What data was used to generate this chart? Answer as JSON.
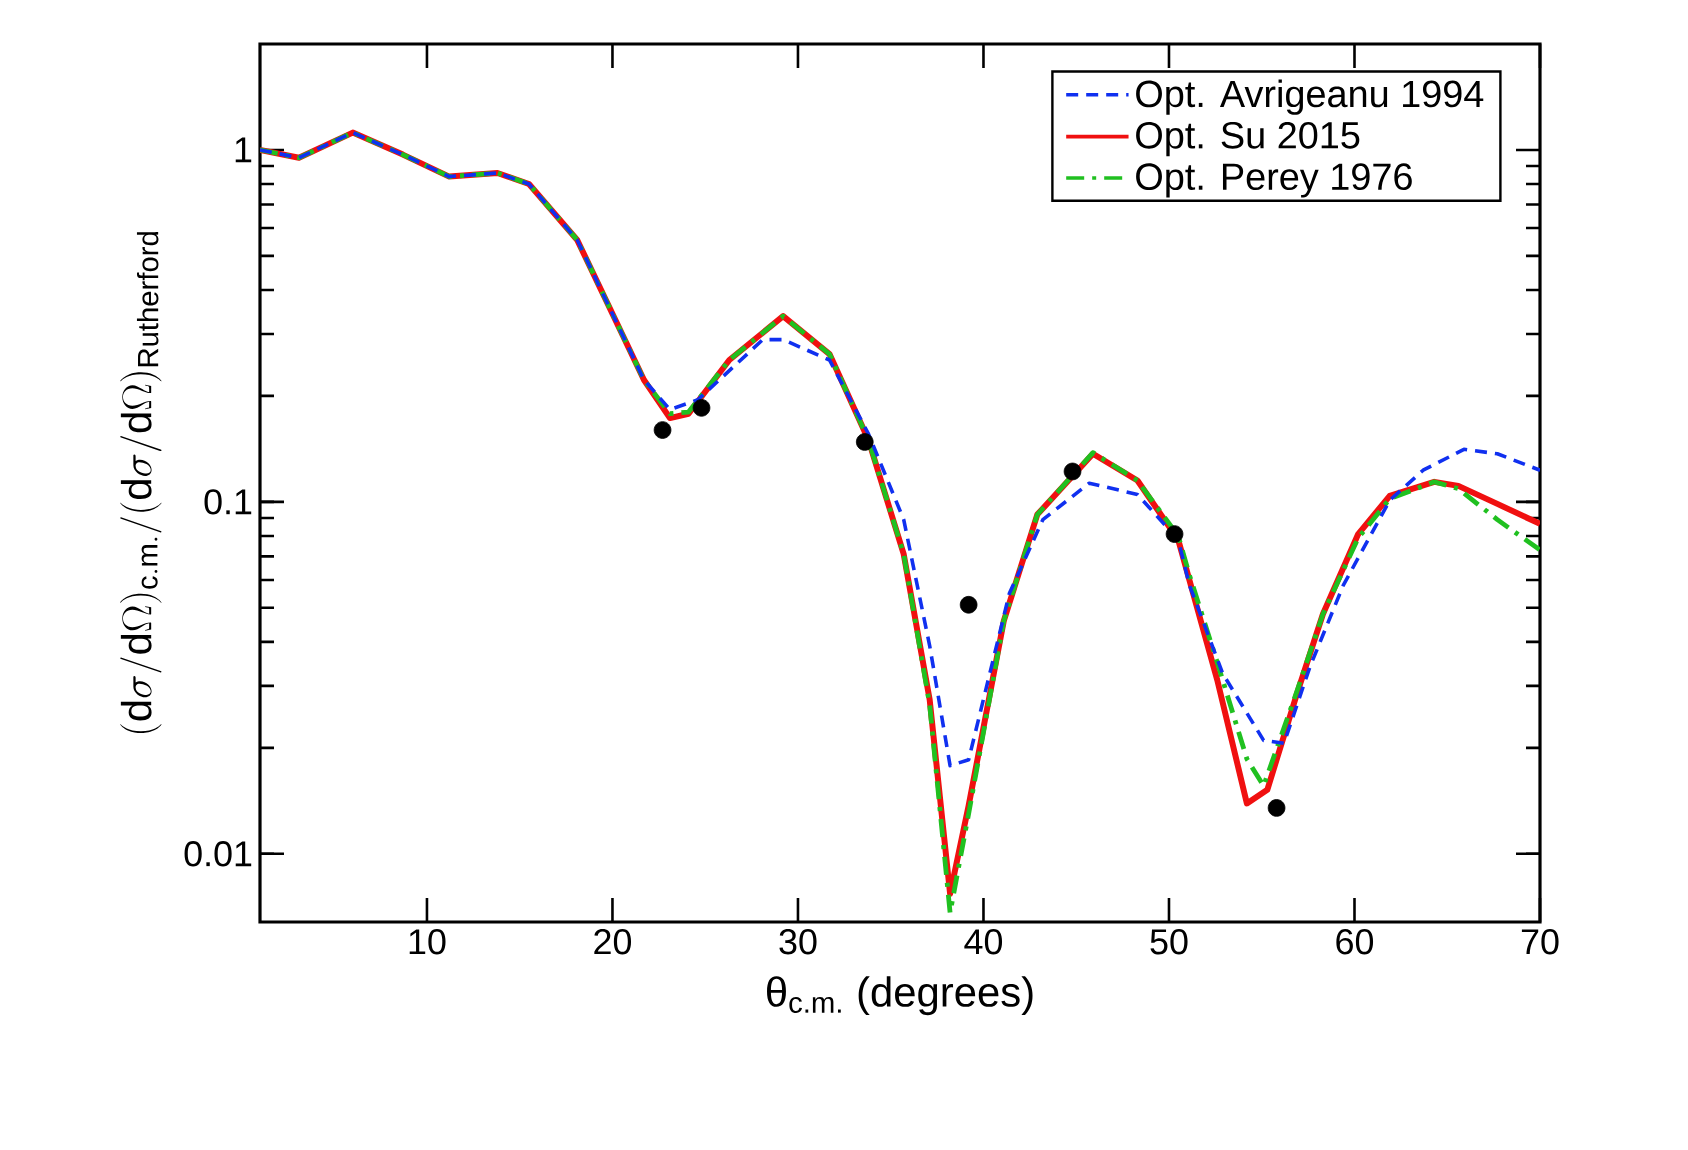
{
  "chart_data": {
    "type": "line",
    "xlabel": "θ$_{c.m.}$ (degrees)",
    "ylabel": "(\\mathrm{d}\\sigma/\\mathrm{d}\\Omega)_{\\mathrm{c.m.}}/(\\mathrm{d}\\sigma/\\mathrm{d}\\Omega)_{\\mathrm{Rutherford}}",
    "xlim": [
      1,
      70
    ],
    "ylim": [
      0.0064,
      2
    ],
    "xticks": [
      10,
      20,
      30,
      40,
      50,
      60,
      70
    ],
    "yticks": [
      0.01,
      0.1,
      1
    ],
    "log": "y",
    "legend": "top right",
    "series": [
      {
        "name": "Opt. Avrigeanu 1994",
        "color": "#1030f0",
        "line_style": "dashed",
        "x": [
          1,
          3.1,
          6.0,
          8.7,
          11.2,
          13.8,
          15.5,
          18.1,
          19.8,
          21.7,
          23.1,
          24.6,
          28.1,
          29.2,
          31.7,
          33.8,
          35.7,
          37.1,
          38.2,
          39.2,
          41.4,
          43.2,
          45.7,
          48.3,
          50.5,
          51.1,
          52.9,
          55.1,
          56.2,
          57.6,
          59.4,
          61.9,
          63.7,
          65.9,
          67.7,
          70
        ],
        "values": [
          1.0,
          0.95,
          1.12,
          0.97,
          0.84,
          0.86,
          0.8,
          0.555,
          0.36,
          0.222,
          0.183,
          0.195,
          0.289,
          0.289,
          0.253,
          0.156,
          0.089,
          0.039,
          0.0178,
          0.0185,
          0.055,
          0.089,
          0.113,
          0.105,
          0.078,
          0.058,
          0.0325,
          0.021,
          0.0206,
          0.034,
          0.058,
          0.101,
          0.123,
          0.141,
          0.137,
          0.123
        ]
      },
      {
        "name": "Opt. Su 2015",
        "color": "#f01010",
        "line_style": "solid",
        "x": [
          1,
          3.1,
          6.0,
          8.7,
          11.2,
          13.8,
          15.5,
          18.1,
          19.8,
          21.7,
          23.1,
          24.1,
          26.3,
          29.2,
          31.7,
          33.8,
          35.7,
          37.1,
          38.2,
          39.2,
          41.1,
          42.9,
          45.9,
          48.3,
          50.5,
          51.1,
          52.6,
          54.2,
          55.3,
          56.9,
          58.3,
          60.2,
          61.9,
          64.3,
          65.6,
          67.7,
          70
        ],
        "values": [
          1.0,
          0.95,
          1.12,
          0.97,
          0.84,
          0.86,
          0.8,
          0.555,
          0.36,
          0.222,
          0.173,
          0.178,
          0.253,
          0.337,
          0.263,
          0.15,
          0.071,
          0.0274,
          0.0077,
          0.0137,
          0.046,
          0.092,
          0.137,
          0.115,
          0.078,
          0.06,
          0.0312,
          0.0139,
          0.0152,
          0.0285,
          0.048,
          0.081,
          0.104,
          0.114,
          0.111,
          0.0987,
          0.0866
        ]
      },
      {
        "name": "Opt. Perey 1976",
        "color": "#20c020",
        "line_style": "dashdot",
        "x": [
          1,
          3.1,
          6.0,
          8.7,
          11.2,
          13.8,
          15.5,
          18.1,
          19.8,
          21.7,
          23.1,
          24.1,
          26.3,
          29.2,
          31.7,
          33.8,
          35.7,
          37.1,
          38.2,
          39.2,
          41.1,
          42.9,
          45.9,
          48.3,
          50.5,
          51.1,
          52.6,
          54.2,
          55.1,
          56.9,
          58.3,
          60.2,
          61.9,
          64.3,
          65.6,
          67.7,
          70
        ],
        "values": [
          1.0,
          0.95,
          1.12,
          0.97,
          0.84,
          0.86,
          0.8,
          0.555,
          0.36,
          0.222,
          0.178,
          0.18,
          0.253,
          0.337,
          0.263,
          0.15,
          0.071,
          0.0265,
          0.0068,
          0.013,
          0.046,
          0.092,
          0.138,
          0.115,
          0.08,
          0.062,
          0.035,
          0.0186,
          0.0156,
          0.029,
          0.048,
          0.079,
          0.102,
          0.114,
          0.109,
          0.089,
          0.073
        ]
      },
      {
        "type": "scatter",
        "color": "#000000",
        "marker": "circle",
        "x": [
          22.7,
          24.8,
          33.6,
          39.2,
          44.8,
          50.3,
          55.8
        ],
        "values": [
          0.16,
          0.185,
          0.148,
          0.051,
          0.122,
          0.081,
          0.0135
        ]
      }
    ]
  }
}
